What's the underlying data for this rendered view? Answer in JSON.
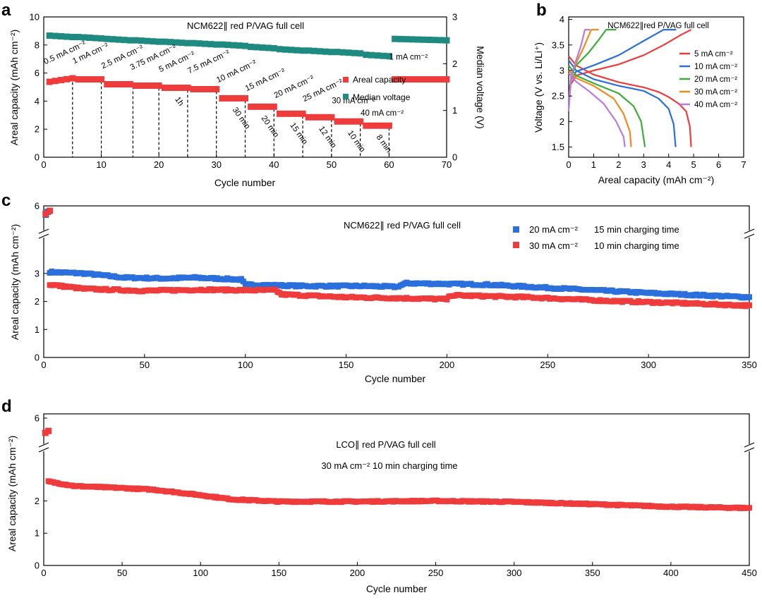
{
  "colors": {
    "red": "#ee3b3b",
    "teal": "#1f8a80",
    "blue": "#2a6fdb",
    "green": "#3cab3a",
    "orange": "#f28a1e",
    "purple": "#b67be6",
    "axis": "#000000"
  },
  "chart_data": [
    {
      "panel": "a",
      "type": "scatter",
      "title": "NCM622∥ red P/VAG full cell",
      "xlabel": "Cycle number",
      "ylabel": "Areal capacity (mAh cm⁻²)",
      "ylabel2": "Median voltage (V)",
      "xlim": [
        0,
        70
      ],
      "ylim": [
        0,
        10
      ],
      "y2lim": [
        0,
        3
      ],
      "xticks": [
        0,
        10,
        20,
        30,
        40,
        50,
        60,
        70
      ],
      "yticks": [
        0,
        2,
        4,
        6,
        8,
        10
      ],
      "y2ticks": [
        0,
        1,
        2,
        3
      ],
      "legend": [
        {
          "name": "Areal capacity",
          "color": "#ee3b3b"
        },
        {
          "name": "Median voltage",
          "color": "#1f8a80"
        }
      ],
      "segments": [
        {
          "x0": 1,
          "x1": 5,
          "capacity": 5.5,
          "voltage": 2.6,
          "rate": "0.5 mA cm⁻²",
          "time": ""
        },
        {
          "x0": 6,
          "x1": 10,
          "capacity": 5.55,
          "voltage": 2.57,
          "rate": "1 mA cm⁻²",
          "time": ""
        },
        {
          "x0": 11,
          "x1": 15,
          "capacity": 5.2,
          "voltage": 2.53,
          "rate": "2.5 mA cm⁻²",
          "time": ""
        },
        {
          "x0": 16,
          "x1": 20,
          "capacity": 5.1,
          "voltage": 2.5,
          "rate": "3.75 mA cm⁻²",
          "time": ""
        },
        {
          "x0": 21,
          "x1": 25,
          "capacity": 4.95,
          "voltage": 2.47,
          "rate": "5 mA cm⁻²",
          "time": "1h"
        },
        {
          "x0": 26,
          "x1": 30,
          "capacity": 4.85,
          "voltage": 2.44,
          "rate": "7.5 mA cm⁻²",
          "time": ""
        },
        {
          "x0": 31,
          "x1": 35,
          "capacity": 4.2,
          "voltage": 2.41,
          "rate": "10 mA cm⁻²",
          "time": "30 min"
        },
        {
          "x0": 36,
          "x1": 40,
          "capacity": 3.6,
          "voltage": 2.36,
          "rate": "15 mA cm⁻²",
          "time": "20 min"
        },
        {
          "x0": 41,
          "x1": 45,
          "capacity": 3.1,
          "voltage": 2.31,
          "rate": "20 mA cm⁻²",
          "time": "15 min"
        },
        {
          "x0": 46,
          "x1": 50,
          "capacity": 2.85,
          "voltage": 2.28,
          "rate": "25 mA cm⁻²",
          "time": "12 min"
        },
        {
          "x0": 51,
          "x1": 55,
          "capacity": 2.55,
          "voltage": 2.25,
          "rate": "30 mA cm⁻²",
          "time": "10 min"
        },
        {
          "x0": 56,
          "x1": 60,
          "capacity": 2.25,
          "voltage": 2.19,
          "rate": "40 mA cm⁻²",
          "time": "8 min"
        },
        {
          "x0": 61,
          "x1": 70,
          "capacity": 5.55,
          "voltage": 2.53,
          "rate": "1 mA cm⁻²",
          "time": ""
        }
      ],
      "dashed_x": [
        5,
        10,
        15.5,
        20,
        25,
        30,
        35,
        40,
        45,
        50,
        55,
        60
      ]
    },
    {
      "panel": "b",
      "type": "line",
      "title": "NCM622∥red P/VAG full cell",
      "xlabel": "Areal capacity (mAh cm⁻²)",
      "ylabel": "Voltage (V vs. Li/Li⁺)",
      "xlim": [
        0,
        7
      ],
      "ylim": [
        1.3,
        4.05
      ],
      "xticks": [
        0,
        1,
        2,
        3,
        4,
        5,
        6,
        7
      ],
      "yticks": [
        1.5,
        2,
        2.5,
        3,
        3.5,
        4
      ],
      "series": [
        {
          "name": "5 mA cm⁻²",
          "color": "#ee3b3b",
          "charge": [
            [
              0,
              2.35
            ],
            [
              0.05,
              2.7
            ],
            [
              0.3,
              2.9
            ],
            [
              1.0,
              3.0
            ],
            [
              2.0,
              3.12
            ],
            [
              3.0,
              3.3
            ],
            [
              3.8,
              3.5
            ],
            [
              4.5,
              3.7
            ],
            [
              4.9,
              3.8
            ]
          ],
          "discharge": [
            [
              0,
              3.28
            ],
            [
              0.3,
              3.1
            ],
            [
              1.0,
              2.92
            ],
            [
              2.0,
              2.77
            ],
            [
              3.0,
              2.67
            ],
            [
              3.6,
              2.58
            ],
            [
              4.0,
              2.48
            ],
            [
              4.4,
              2.35
            ],
            [
              4.7,
              2.2
            ],
            [
              4.85,
              1.9
            ],
            [
              4.9,
              1.5
            ]
          ]
        },
        {
          "name": "10 mA cm⁻²",
          "color": "#2a6fdb",
          "charge": [
            [
              0,
              2.3
            ],
            [
              0.08,
              2.8
            ],
            [
              0.3,
              2.98
            ],
            [
              1.0,
              3.1
            ],
            [
              2.0,
              3.3
            ],
            [
              3.0,
              3.58
            ],
            [
              3.8,
              3.8
            ],
            [
              4.3,
              3.8
            ]
          ],
          "discharge": [
            [
              0,
              3.2
            ],
            [
              0.3,
              3.0
            ],
            [
              1.0,
              2.83
            ],
            [
              2.0,
              2.7
            ],
            [
              3.0,
              2.6
            ],
            [
              3.6,
              2.45
            ],
            [
              4.0,
              2.25
            ],
            [
              4.2,
              1.95
            ],
            [
              4.28,
              1.5
            ]
          ]
        },
        {
          "name": "20 mA cm⁻²",
          "color": "#3cab3a",
          "charge": [
            [
              0,
              2.25
            ],
            [
              0.1,
              2.9
            ],
            [
              0.3,
              3.1
            ],
            [
              0.8,
              3.35
            ],
            [
              1.2,
              3.6
            ],
            [
              1.5,
              3.8
            ],
            [
              1.9,
              3.8
            ]
          ],
          "discharge": [
            [
              0,
              3.1
            ],
            [
              0.3,
              2.9
            ],
            [
              1.0,
              2.75
            ],
            [
              2.0,
              2.55
            ],
            [
              2.6,
              2.3
            ],
            [
              2.9,
              2.0
            ],
            [
              3.05,
              1.5
            ]
          ]
        },
        {
          "name": "30 mA cm⁻²",
          "color": "#f28a1e",
          "charge": [
            [
              0,
              2.25
            ],
            [
              0.12,
              2.95
            ],
            [
              0.35,
              3.2
            ],
            [
              0.6,
              3.45
            ],
            [
              0.9,
              3.8
            ],
            [
              1.2,
              3.8
            ]
          ],
          "discharge": [
            [
              0,
              3.0
            ],
            [
              0.3,
              2.85
            ],
            [
              1.0,
              2.7
            ],
            [
              1.8,
              2.45
            ],
            [
              2.2,
              2.15
            ],
            [
              2.45,
              1.8
            ],
            [
              2.5,
              1.5
            ]
          ]
        },
        {
          "name": "40 mA cm⁻²",
          "color": "#b67be6",
          "charge": [
            [
              0,
              2.2
            ],
            [
              0.1,
              2.9
            ],
            [
              0.3,
              3.2
            ],
            [
              0.5,
              3.5
            ],
            [
              0.65,
              3.8
            ],
            [
              0.85,
              3.8
            ]
          ],
          "discharge": [
            [
              0,
              2.95
            ],
            [
              0.3,
              2.78
            ],
            [
              0.8,
              2.6
            ],
            [
              1.4,
              2.35
            ],
            [
              1.9,
              2.0
            ],
            [
              2.2,
              1.7
            ],
            [
              2.25,
              1.5
            ]
          ]
        }
      ]
    },
    {
      "panel": "c",
      "type": "scatter",
      "title": "NCM622∥ red P/VAG full cell",
      "xlabel": "Cycle number",
      "ylabel": "Areal capacity (mAh cm⁻²)",
      "xlim": [
        0,
        350
      ],
      "ylim": [
        0,
        3.8
      ],
      "axis_break": true,
      "xticks": [
        0,
        50,
        100,
        150,
        200,
        250,
        300,
        350
      ],
      "yticks": [
        0,
        1,
        2,
        3
      ],
      "ytick_top": 6,
      "series": [
        {
          "name": "20 mA cm⁻²",
          "note": "15 min charging time",
          "color": "#2a6fdb",
          "first": [
            [
              1,
              4.9
            ],
            [
              2,
              5.2
            ]
          ],
          "knots": [
            [
              3,
              3.05
            ],
            [
              20,
              3.0
            ],
            [
              40,
              2.85
            ],
            [
              60,
              2.82
            ],
            [
              75,
              2.85
            ],
            [
              98,
              2.78
            ],
            [
              100,
              2.6
            ],
            [
              130,
              2.55
            ],
            [
              160,
              2.55
            ],
            [
              175,
              2.52
            ],
            [
              180,
              2.65
            ],
            [
              220,
              2.6
            ],
            [
              260,
              2.45
            ],
            [
              300,
              2.3
            ],
            [
              350,
              2.15
            ]
          ]
        },
        {
          "name": "30 mA cm⁻²",
          "note": "10 min charging time",
          "color": "#ee3b3b",
          "first": [
            [
              1,
              5.0
            ],
            [
              3,
              5.3
            ]
          ],
          "knots": [
            [
              3,
              2.6
            ],
            [
              20,
              2.45
            ],
            [
              50,
              2.38
            ],
            [
              80,
              2.42
            ],
            [
              100,
              2.4
            ],
            [
              115,
              2.4
            ],
            [
              118,
              2.25
            ],
            [
              150,
              2.15
            ],
            [
              175,
              2.12
            ],
            [
              200,
              2.08
            ],
            [
              202,
              2.22
            ],
            [
              240,
              2.15
            ],
            [
              280,
              2.02
            ],
            [
              320,
              1.93
            ],
            [
              350,
              1.85
            ]
          ]
        }
      ]
    },
    {
      "panel": "d",
      "type": "scatter",
      "title": "LCO∥ red P/VAG full cell",
      "subtitle": "30 mA cm⁻²   10 min charging time",
      "xlabel": "Cycle number",
      "ylabel": "Areal capacity (mAh cm⁻²)",
      "xlim": [
        0,
        450
      ],
      "ylim": [
        0,
        2.95
      ],
      "axis_break": true,
      "xticks": [
        0,
        50,
        100,
        150,
        200,
        250,
        300,
        350,
        400,
        450
      ],
      "yticks": [
        0,
        1,
        2
      ],
      "ytick_top": 6,
      "series": [
        {
          "name": "30 mA cm⁻²",
          "color": "#ee3b3b",
          "first": [
            [
              1,
              4.8
            ],
            [
              3,
              5.0
            ]
          ],
          "knots": [
            [
              3,
              2.6
            ],
            [
              20,
              2.46
            ],
            [
              50,
              2.4
            ],
            [
              70,
              2.35
            ],
            [
              100,
              2.18
            ],
            [
              120,
              2.05
            ],
            [
              150,
              1.98
            ],
            [
              200,
              1.98
            ],
            [
              250,
              2.0
            ],
            [
              300,
              1.97
            ],
            [
              350,
              1.9
            ],
            [
              400,
              1.82
            ],
            [
              450,
              1.78
            ]
          ]
        }
      ]
    }
  ],
  "panel_labels": {
    "a": "a",
    "b": "b",
    "c": "c",
    "d": "d"
  },
  "tick_text": {
    "a_x": [
      "0",
      "10",
      "20",
      "30",
      "40",
      "50",
      "60",
      "70"
    ],
    "a_y": [
      "0",
      "2",
      "4",
      "6",
      "8",
      "10"
    ],
    "a_y2": [
      "0",
      "1",
      "2",
      "3"
    ],
    "b_x": [
      "0",
      "1",
      "2",
      "3",
      "4",
      "5",
      "6",
      "7"
    ],
    "b_y": [
      "1.5",
      "2",
      "2.5",
      "3",
      "3.5",
      "4"
    ],
    "c_x": [
      "0",
      "50",
      "100",
      "150",
      "200",
      "250",
      "300",
      "350"
    ],
    "c_y": [
      "0",
      "1",
      "2",
      "3",
      "6"
    ],
    "d_x": [
      "0",
      "50",
      "100",
      "150",
      "200",
      "250",
      "300",
      "350",
      "400",
      "450"
    ],
    "d_y": [
      "0",
      "1",
      "2",
      "6"
    ]
  }
}
